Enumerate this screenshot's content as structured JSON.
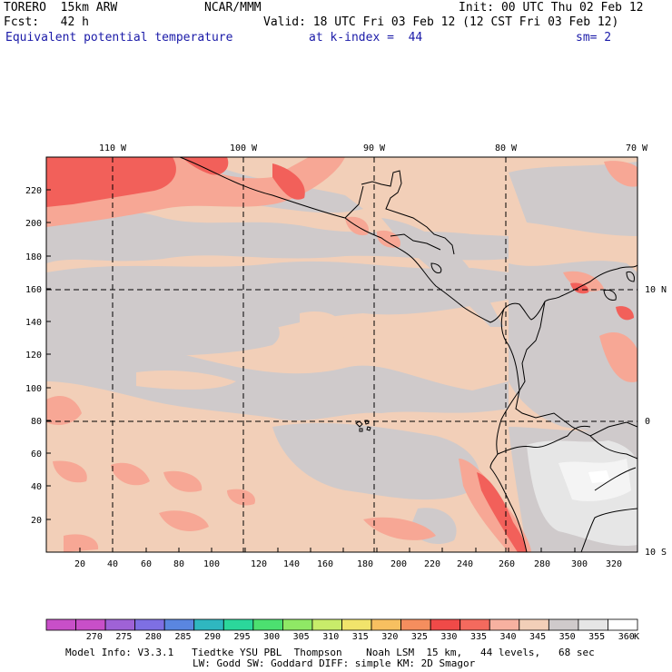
{
  "header": {
    "model_line": "TORERO  15km ARW",
    "center": "NCAR/MMM",
    "init": "Init: 00 UTC Thu 02 Feb 12",
    "fcst": "Fcst:   42 h",
    "valid": "Valid: 18 UTC Fri 03 Feb 12 (12 CST Fri 03 Feb 12)",
    "field": "Equivalent potential temperature",
    "level": "at k-index =  44",
    "smoothing": "sm= 2"
  },
  "axes": {
    "x_ticks": [
      "20",
      "40",
      "60",
      "80",
      "100",
      "120",
      "140",
      "160",
      "180",
      "200",
      "220",
      "240",
      "260",
      "280",
      "300",
      "320"
    ],
    "y_ticks": [
      "20",
      "40",
      "60",
      "80",
      "100",
      "120",
      "140",
      "160",
      "180",
      "200",
      "220"
    ],
    "lon_labels": [
      "110 W",
      "100 W",
      "90 W",
      "80 W",
      "70 W"
    ],
    "lat_labels": [
      "10 N",
      "0",
      "10 S"
    ]
  },
  "colorbar": {
    "levels": [
      "270",
      "275",
      "280",
      "285",
      "290",
      "295",
      "300",
      "305",
      "310",
      "315",
      "320",
      "325",
      "330",
      "335",
      "340",
      "345",
      "350",
      "355",
      "360"
    ],
    "unit": "K",
    "colors": [
      "#c84fc8",
      "#9f62d6",
      "#7e6fe3",
      "#5a86e0",
      "#2fb7c0",
      "#2bd79b",
      "#4ce070",
      "#8fe865",
      "#c8ec6a",
      "#f1e46b",
      "#f7c060",
      "#f58e5e",
      "#f04a48",
      "#f46a5e",
      "#f7b1a0",
      "#f2cfb8",
      "#cfcacb",
      "#e6e6e6",
      "#ffffff"
    ]
  },
  "map_colors": {
    "peach": "#f2cfb8",
    "gray": "#cfcacb",
    "light_gray": "#e6e6e6",
    "salmon": "#f7a795",
    "red": "#f2605a",
    "white": "#ffffff"
  },
  "footer": {
    "line1": "Model Info: V3.3.1   Tiedtke YSU PBL  Thompson    Noah LSM  15 km,   44 levels,   68 sec",
    "line2": "LW: Godd SW: Goddard DIFF: simple KM: 2D Smagor"
  }
}
